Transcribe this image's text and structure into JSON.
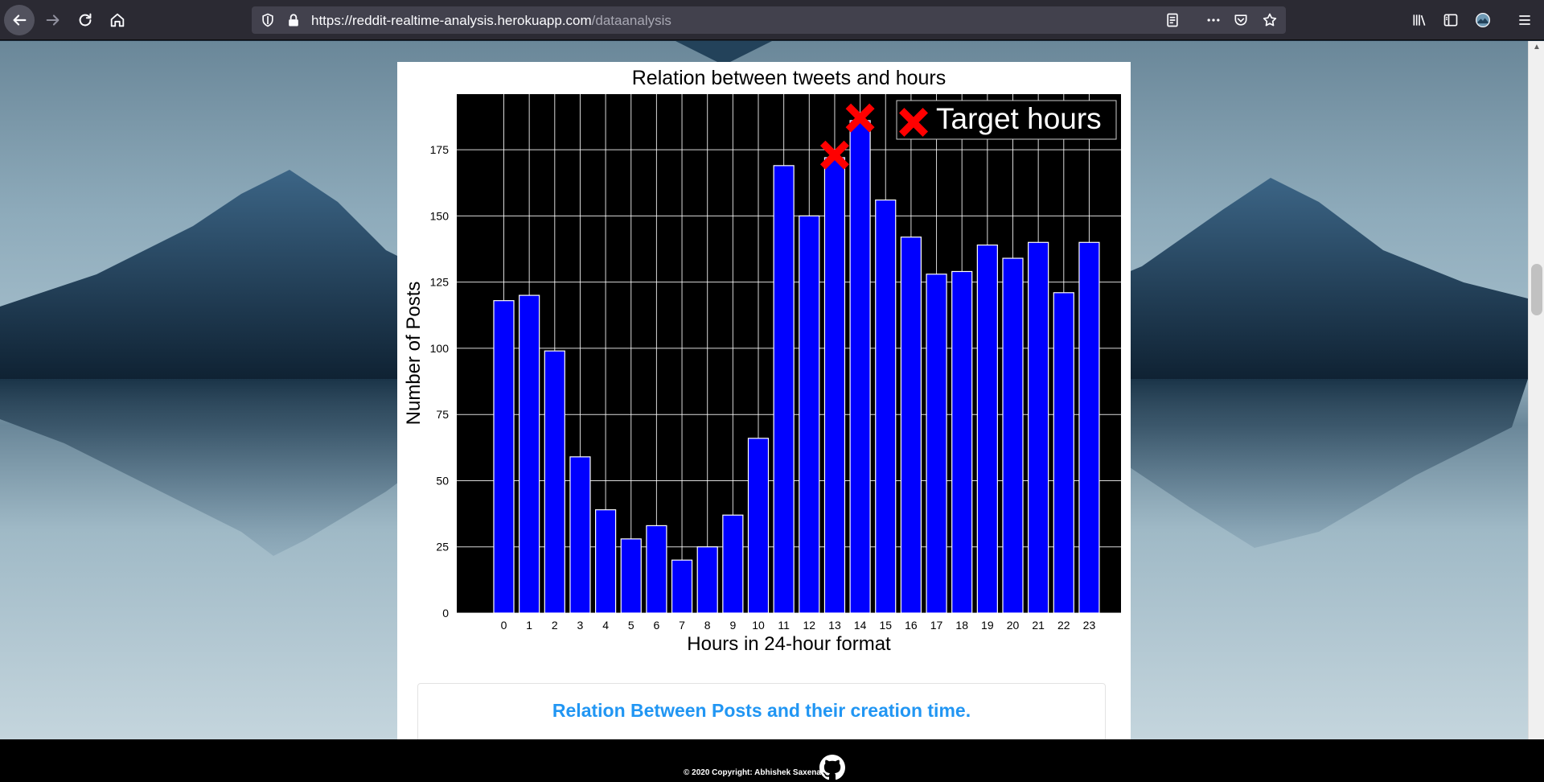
{
  "browser": {
    "url_host": "https://reddit-realtime-analysis.herokuapp.com",
    "url_path": "/dataanalysis",
    "icons": [
      "back-icon",
      "forward-icon",
      "reload-icon",
      "home-icon",
      "shield-icon",
      "lock-icon",
      "reader-mode-icon",
      "more-icon",
      "pocket-icon",
      "bookmark-star-icon",
      "library-icon",
      "sidebar-icon",
      "account-avatar-icon",
      "menu-icon"
    ]
  },
  "chart_data": {
    "type": "bar",
    "title": "Relation between tweets and hours",
    "xlabel": "Hours in 24-hour format",
    "ylabel": "Number of Posts",
    "categories": [
      "0",
      "1",
      "2",
      "3",
      "4",
      "5",
      "6",
      "7",
      "8",
      "9",
      "10",
      "11",
      "12",
      "13",
      "14",
      "15",
      "16",
      "17",
      "18",
      "19",
      "20",
      "21",
      "22",
      "23"
    ],
    "values": [
      118,
      120,
      99,
      59,
      39,
      28,
      33,
      20,
      25,
      37,
      66,
      169,
      150,
      172,
      186,
      156,
      142,
      128,
      129,
      139,
      134,
      140,
      121,
      140
    ],
    "ylim": [
      0,
      196
    ],
    "yticks": [
      0,
      25,
      50,
      75,
      100,
      125,
      150,
      175
    ],
    "grid": true,
    "background": "#000000",
    "bar_color": "#0000ff",
    "grid_color": "#ffffff",
    "markers": {
      "name": "Target hours",
      "symbol": "x",
      "color": "#ff0000",
      "points": [
        {
          "x": "13",
          "y": 173
        },
        {
          "x": "14",
          "y": 187
        }
      ]
    },
    "legend_position": "top-right"
  },
  "caption": "Relation Between Posts and their creation time.",
  "footer": {
    "copyright": "© 2020 Copyright: Abhishek Saxena",
    "icon": "github-icon"
  }
}
